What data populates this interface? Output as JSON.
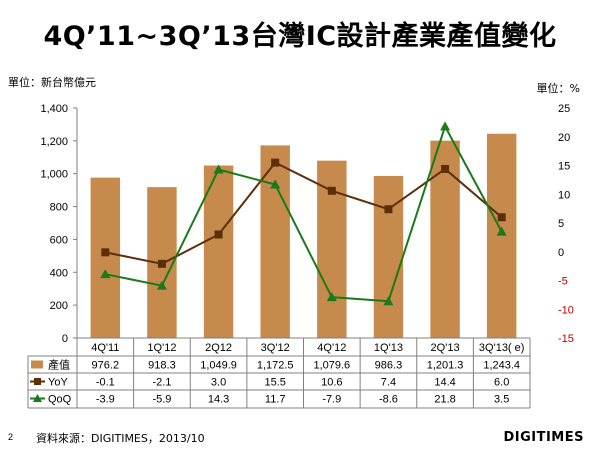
{
  "title": "4Q’11~3Q’13台灣IC設計產業產值變化",
  "unit_left": "單位：新台幣億元",
  "unit_right": "單位：%",
  "source": "資料來源：DIGITIMES，2013/10",
  "page_number": "2",
  "logo": "DIGITIMES",
  "colors": {
    "bar": "#c68a4c",
    "yoy": "#5c2e0a",
    "qoq": "#1a7a1a",
    "right_axis_negative": "#c00000"
  },
  "chart_data": {
    "type": "bar+line",
    "categories": [
      "4Q'11",
      "1Q'12",
      "2Q12",
      "3Q'12",
      "4Q'12",
      "1Q'13",
      "2Q'13",
      "3Q'13( e)"
    ],
    "series": [
      {
        "name": "產值",
        "type": "bar",
        "axis": "left",
        "values": [
          976.2,
          918.3,
          1049.9,
          1172.5,
          1079.6,
          986.3,
          1201.3,
          1243.4
        ],
        "labels": [
          "976.2",
          "918.3",
          "1,049.9",
          "1,172.5",
          "1,079.6",
          "986.3",
          "1,201.3",
          "1,243.4"
        ]
      },
      {
        "name": "YoY",
        "type": "line",
        "axis": "right",
        "marker": "square",
        "values": [
          -0.1,
          -2.1,
          3.0,
          15.5,
          10.6,
          7.4,
          14.4,
          6.0
        ],
        "labels": [
          "-0.1",
          "-2.1",
          "3.0",
          "15.5",
          "10.6",
          "7.4",
          "14.4",
          "6.0"
        ]
      },
      {
        "name": "QoQ",
        "type": "line",
        "axis": "right",
        "marker": "triangle",
        "values": [
          -3.9,
          -5.9,
          14.3,
          11.7,
          -7.9,
          -8.6,
          21.8,
          3.5
        ],
        "labels": [
          "-3.9",
          "-5.9",
          "14.3",
          "11.7",
          "-7.9",
          "-8.6",
          "21.8",
          "3.5"
        ]
      }
    ],
    "left_axis": {
      "min": 0,
      "max": 1400,
      "step": 200,
      "tick_labels": [
        "0",
        "200",
        "400",
        "600",
        "800",
        "1,000",
        "1,200",
        "1,400"
      ]
    },
    "right_axis": {
      "min": -15,
      "max": 25,
      "step": 5,
      "tick_labels": [
        "-15",
        "-10",
        "-5",
        "0",
        "5",
        "10",
        "15",
        "20",
        "25"
      ]
    },
    "grid": false,
    "legend_placement": "data-table-below"
  }
}
